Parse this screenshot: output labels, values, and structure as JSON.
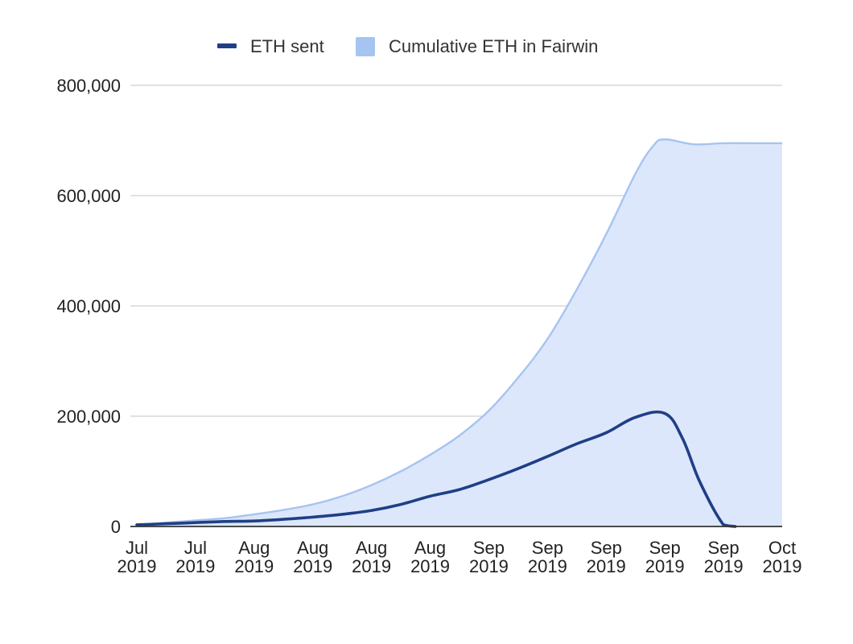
{
  "chart_data": {
    "type": "area",
    "title": "",
    "xlabel": "",
    "ylabel": "",
    "categories": [
      [
        "Jul",
        "2019"
      ],
      [
        "Jul",
        "2019"
      ],
      [
        "Aug",
        "2019"
      ],
      [
        "Aug",
        "2019"
      ],
      [
        "Aug",
        "2019"
      ],
      [
        "Aug",
        "2019"
      ],
      [
        "Sep",
        "2019"
      ],
      [
        "Sep",
        "2019"
      ],
      [
        "Sep",
        "2019"
      ],
      [
        "Sep",
        "2019"
      ],
      [
        "Sep",
        "2019"
      ],
      [
        "Oct",
        "2019"
      ]
    ],
    "yticks": [
      "0",
      "200,000",
      "400,000",
      "600,000",
      "800,000"
    ],
    "ylim": [
      0,
      800000
    ],
    "grid": true,
    "legend_position": "top",
    "series": [
      {
        "name": "ETH sent",
        "kind": "line",
        "color": "#1f3f86",
        "x": [
          0,
          0.5,
          1,
          1.5,
          2,
          2.5,
          3,
          3.5,
          4,
          4.5,
          5,
          5.5,
          6,
          6.5,
          7,
          7.5,
          8,
          8.5,
          9,
          9.3,
          9.6,
          10,
          10.2
        ],
        "values": [
          3000,
          5000,
          7000,
          9000,
          10000,
          13000,
          17000,
          22000,
          29000,
          40000,
          55000,
          67000,
          85000,
          105000,
          127000,
          150000,
          170000,
          198000,
          205000,
          160000,
          80000,
          3000,
          0
        ]
      },
      {
        "name": "Cumulative ETH in Fairwin",
        "kind": "area",
        "color": "#a6c4f1",
        "fill": "#dde7fb",
        "x": [
          0,
          0.5,
          1,
          1.5,
          2,
          2.5,
          3,
          3.5,
          4,
          4.5,
          5,
          5.5,
          6,
          6.5,
          7,
          7.5,
          8,
          8.5,
          8.8,
          9,
          9.5,
          10,
          10.5,
          11
        ],
        "values": [
          3000,
          7000,
          11000,
          15000,
          22000,
          30000,
          40000,
          55000,
          75000,
          100000,
          130000,
          165000,
          210000,
          270000,
          340000,
          430000,
          530000,
          640000,
          690000,
          702000,
          693000,
          695000,
          695000,
          695000
        ]
      }
    ]
  }
}
